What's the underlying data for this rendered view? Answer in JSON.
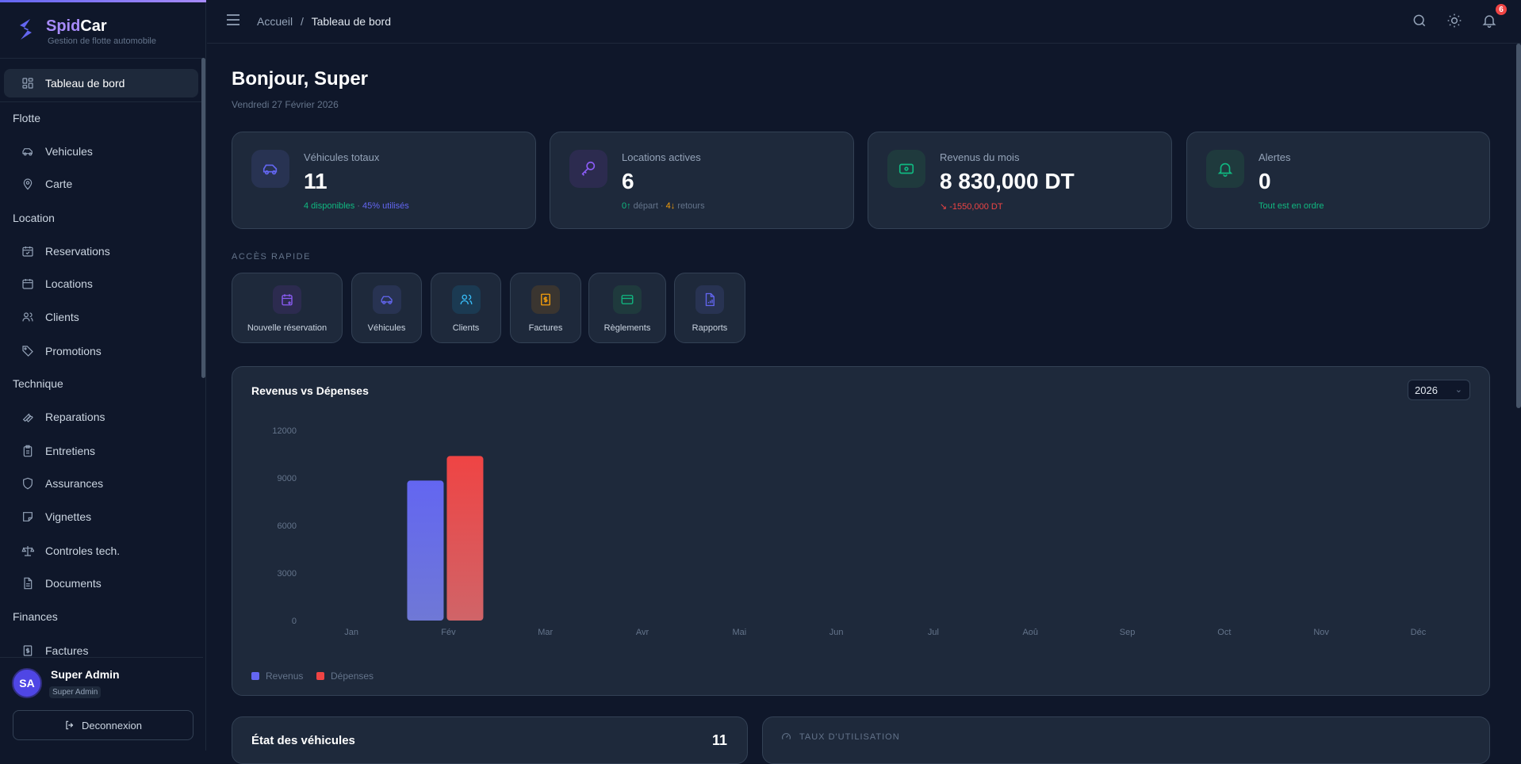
{
  "brand": {
    "name_a": "Spid",
    "name_b": "Car",
    "subtitle": "Gestion de flotte automobile"
  },
  "sidebar": {
    "active": "Tableau de bord",
    "sections": [
      {
        "title": "Flotte",
        "items": [
          "Vehicules",
          "Carte"
        ]
      },
      {
        "title": "Location",
        "items": [
          "Reservations",
          "Locations",
          "Clients",
          "Promotions"
        ]
      },
      {
        "title": "Technique",
        "items": [
          "Reparations",
          "Entretiens",
          "Assurances",
          "Vignettes",
          "Controles tech.",
          "Documents"
        ]
      },
      {
        "title": "Finances",
        "items": [
          "Factures"
        ]
      }
    ],
    "user": {
      "initials": "SA",
      "name": "Super Admin",
      "role": "Super Admin"
    },
    "logout": "Deconnexion"
  },
  "header": {
    "crumb_root": "Accueil",
    "crumb_sep": "/",
    "crumb_current": "Tableau de bord",
    "notif_count": "6"
  },
  "greeting": "Bonjour, Super",
  "date": "Vendredi 27 Février 2026",
  "stats": [
    {
      "label": "Véhicules totaux",
      "value": "11",
      "sub_a": "4 disponibles",
      "sub_sep": " · ",
      "sub_b": "45% utilisés",
      "icon": "car-icon"
    },
    {
      "label": "Locations actives",
      "value": "6",
      "sub_a": "0↑",
      "sub_a2": " départ · ",
      "sub_b": "4↓",
      "sub_b2": " retours",
      "icon": "key-icon"
    },
    {
      "label": "Revenus du mois",
      "value": "8 830,000 DT",
      "sub_a": "↘ -1550,000 DT",
      "icon": "banknote-icon"
    },
    {
      "label": "Alertes",
      "value": "0",
      "sub_a": "Tout est en ordre",
      "icon": "bell-icon"
    }
  ],
  "quick_access": {
    "title": "ACCÈS RAPIDE",
    "items": [
      "Nouvelle réservation",
      "Véhicules",
      "Clients",
      "Factures",
      "Règlements",
      "Rapports"
    ]
  },
  "chart_card": {
    "title": "Revenus vs Dépenses",
    "year": "2026"
  },
  "chart_data": {
    "type": "bar",
    "title": "Revenus vs Dépenses",
    "categories": [
      "Jan",
      "Fév",
      "Mar",
      "Avr",
      "Mai",
      "Jun",
      "Jul",
      "Aoû",
      "Sep",
      "Oct",
      "Nov",
      "Déc"
    ],
    "series": [
      {
        "name": "Revenus",
        "color": "#6366f1",
        "values": [
          0,
          8830,
          0,
          0,
          0,
          0,
          0,
          0,
          0,
          0,
          0,
          0
        ]
      },
      {
        "name": "Dépenses",
        "color": "#ef4444",
        "values": [
          0,
          10380,
          0,
          0,
          0,
          0,
          0,
          0,
          0,
          0,
          0,
          0
        ]
      }
    ],
    "yticks": [
      0,
      3000,
      6000,
      9000,
      12000
    ],
    "ylim": [
      0,
      12000
    ],
    "grid": false,
    "legend": "bottom-left"
  },
  "bottom": {
    "vehicles_title": "État des véhicules",
    "vehicles_count": "11",
    "usage_title": "TAUX D'UTILISATION"
  },
  "colors": {
    "accent": "#6366f1",
    "success": "#10b981",
    "danger": "#ef4444",
    "warning": "#f59e0b",
    "bg": "#0f172a",
    "card": "#1e293b"
  }
}
